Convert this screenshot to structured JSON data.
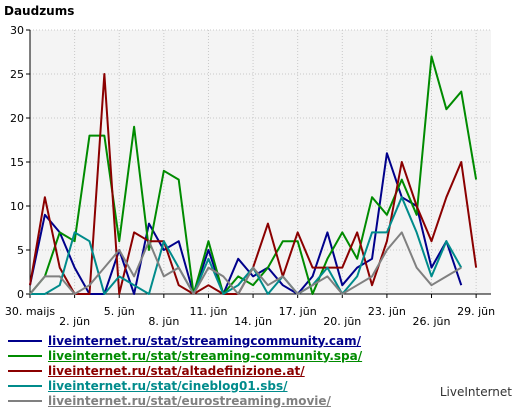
{
  "chart_data": {
    "type": "line",
    "ylabel": "Daudzums",
    "ylim": [
      0,
      30
    ],
    "yticks": [
      0,
      5,
      10,
      15,
      20,
      25,
      30
    ],
    "x_start": 0,
    "x_end": 31,
    "x_ticks": [
      {
        "x": 0,
        "label": "30. maijs",
        "row": 0
      },
      {
        "x": 3,
        "label": "2. jūn",
        "row": 1
      },
      {
        "x": 6,
        "label": "5. jūn",
        "row": 0
      },
      {
        "x": 9,
        "label": "8. jūn",
        "row": 1
      },
      {
        "x": 12,
        "label": "11. jūn",
        "row": 0
      },
      {
        "x": 15,
        "label": "14. jūn",
        "row": 1
      },
      {
        "x": 18,
        "label": "17. jūn",
        "row": 0
      },
      {
        "x": 21,
        "label": "20. jūn",
        "row": 1
      },
      {
        "x": 24,
        "label": "23. jūn",
        "row": 0
      },
      {
        "x": 27,
        "label": "26. jūn",
        "row": 1
      },
      {
        "x": 30,
        "label": "29. jūn",
        "row": 0
      }
    ],
    "grid": true,
    "legend_position": "bottom",
    "series": [
      {
        "name": "liveinternet.ru/stat/streamingcommunity.cam/",
        "color": "#00008b",
        "values": [
          1,
          9,
          7,
          3,
          0,
          0,
          5,
          0,
          8,
          5,
          6,
          0,
          5,
          0,
          4,
          2,
          3,
          1,
          0,
          2,
          7,
          1,
          3,
          4,
          16,
          11,
          10,
          3,
          6,
          1
        ]
      },
      {
        "name": "liveinternet.ru/stat/streaming-community.spa/",
        "color": "#008b00",
        "values": [
          0,
          2,
          7,
          6,
          18,
          18,
          6,
          19,
          5,
          14,
          13,
          0,
          6,
          0,
          2,
          1,
          3,
          6,
          6,
          0,
          4,
          7,
          4,
          11,
          9,
          13,
          9,
          27,
          21,
          23,
          13
        ]
      },
      {
        "name": "liveinternet.ru/stat/altadefinizione.at/",
        "color": "#8b0000",
        "values": [
          1,
          11,
          3,
          0,
          0,
          25,
          0,
          7,
          6,
          6,
          1,
          0,
          1,
          0,
          0,
          3,
          8,
          2,
          7,
          3,
          3,
          3,
          7,
          1,
          6,
          15,
          10,
          6,
          11,
          15,
          3
        ]
      },
      {
        "name": "liveinternet.ru/stat/cineblog01.sbs/",
        "color": "#008b8b",
        "values": [
          0,
          0,
          1,
          7,
          6,
          0,
          2,
          1,
          0,
          6,
          3,
          0,
          4,
          0,
          1,
          3,
          0,
          2,
          0,
          1,
          3,
          0,
          2,
          7,
          7,
          11,
          7,
          2,
          6,
          3
        ]
      },
      {
        "name": "liveinternet.ru/stat/eurostreaming.movie/",
        "color": "#808080",
        "values": [
          0,
          2,
          2,
          0,
          1,
          3,
          5,
          2,
          6,
          2,
          3,
          0,
          3,
          2,
          0,
          3,
          1,
          2,
          0,
          1,
          2,
          0,
          1,
          2,
          5,
          7,
          3,
          1,
          2,
          3
        ]
      }
    ]
  },
  "footer": {
    "brand": "LiveInternet"
  }
}
